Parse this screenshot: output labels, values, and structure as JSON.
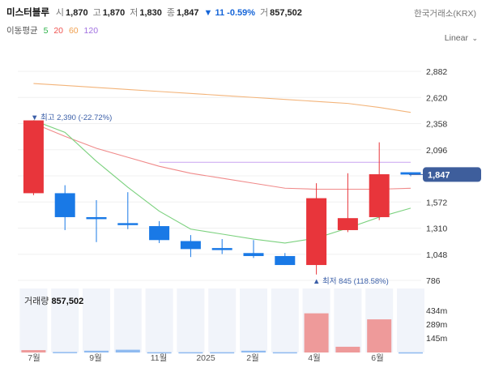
{
  "header": {
    "name": "미스터블루",
    "open_label": "시",
    "open": "1,870",
    "high_label": "고",
    "high": "1,870",
    "low_label": "저",
    "low": "1,830",
    "close_label": "종",
    "close": "1,847",
    "change": "▼ 11 -0.59%",
    "volume_label": "거",
    "volume": "857,502",
    "exchange": "한국거래소(KRX)"
  },
  "ma_bar": {
    "title": "이동평균",
    "periods": [
      {
        "label": "5",
        "color": "#2eb34a"
      },
      {
        "label": "20",
        "color": "#ef5350"
      },
      {
        "label": "60",
        "color": "#f0a050"
      },
      {
        "label": "120",
        "color": "#a070e0"
      }
    ]
  },
  "scale_label": "Linear",
  "price_axis": {
    "ticks": [
      "2,882",
      "2,620",
      "2,358",
      "2,096",
      "1,834",
      "1,572",
      "1,310",
      "1,048",
      "786"
    ],
    "current_tag": "1,847"
  },
  "annotations": {
    "high": "▼ 최고 2,390 (-22.72%)",
    "low": "▲ 최저 845 (118.58%)"
  },
  "volume_panel": {
    "label": "거래량",
    "value": "857,502",
    "ticks": [
      "434m",
      "289m",
      "145m"
    ]
  },
  "x_axis": [
    "7월",
    "9월",
    "11월",
    "2025",
    "2월",
    "4월",
    "6월"
  ],
  "chart_data": {
    "type": "candlestick",
    "y_ticks": [
      2882,
      2620,
      2358,
      2096,
      1834,
      1572,
      1310,
      1048,
      786
    ],
    "candles": [
      {
        "open": 1660,
        "high": 2390,
        "low": 1640,
        "close": 2390
      },
      {
        "open": 1660,
        "high": 1740,
        "low": 1290,
        "close": 1420
      },
      {
        "open": 1420,
        "high": 1590,
        "low": 1170,
        "close": 1400
      },
      {
        "open": 1360,
        "high": 1670,
        "low": 1300,
        "close": 1340
      },
      {
        "open": 1330,
        "high": 1380,
        "low": 1160,
        "close": 1190
      },
      {
        "open": 1180,
        "high": 1240,
        "low": 1020,
        "close": 1100
      },
      {
        "open": 1110,
        "high": 1200,
        "low": 1050,
        "close": 1090
      },
      {
        "open": 1060,
        "high": 1190,
        "low": 1010,
        "close": 1030
      },
      {
        "open": 1030,
        "high": 1060,
        "low": 940,
        "close": 940
      },
      {
        "open": 940,
        "high": 1760,
        "low": 845,
        "close": 1610
      },
      {
        "open": 1290,
        "high": 1860,
        "low": 1270,
        "close": 1410
      },
      {
        "open": 1420,
        "high": 2170,
        "low": 1390,
        "close": 1850
      },
      {
        "open": 1870,
        "high": 1870,
        "low": 1830,
        "close": 1847
      }
    ],
    "ma5": [
      2390,
      2270,
      1980,
      1720,
      1480,
      1300,
      1250,
      1200,
      1160,
      1210,
      1310,
      1420,
      1510
    ],
    "ma20": [
      2360,
      2230,
      2110,
      2020,
      1930,
      1860,
      1810,
      1760,
      1710,
      1700,
      1700,
      1700,
      1710
    ],
    "ma60": [
      2760,
      2740,
      2720,
      2700,
      2680,
      2660,
      2640,
      2620,
      2600,
      2580,
      2560,
      2520,
      2470
    ],
    "ma120": [
      1970,
      1970,
      1970,
      1970,
      1970,
      1970,
      1970,
      1970,
      1970
    ],
    "volumes": [
      24,
      5,
      18,
      28,
      3,
      3,
      3,
      18,
      3,
      396,
      58,
      335,
      2
    ],
    "volume_ticks": [
      434,
      289,
      145
    ],
    "annotations": [
      {
        "label": "최고",
        "value": 2390,
        "pct": "-22.72%"
      },
      {
        "label": "최저",
        "value": 845,
        "pct": "118.58%"
      }
    ],
    "current_price": 1847
  }
}
